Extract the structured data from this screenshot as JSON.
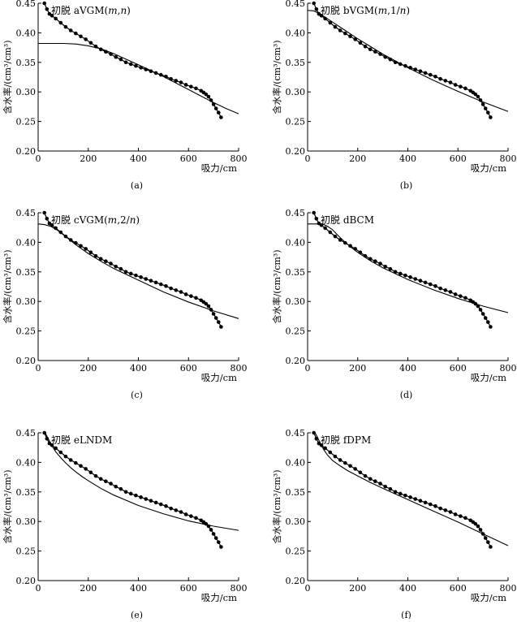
{
  "figure": {
    "panels": [
      {
        "caption": "(a)",
        "title_prefix": "初脱 ",
        "title_letter": "a",
        "title_model": "VGM(",
        "title_params": [
          {
            "t": "m",
            "i": true
          },
          {
            "t": ",",
            "i": false
          },
          {
            "t": "n",
            "i": true
          }
        ],
        "title_close": ")"
      },
      {
        "caption": "(b)",
        "title_prefix": "初脱 ",
        "title_letter": "b",
        "title_model": "VGM(",
        "title_params": [
          {
            "t": "m",
            "i": true
          },
          {
            "t": ",1/",
            "i": false
          },
          {
            "t": "n",
            "i": true
          }
        ],
        "title_close": ")"
      },
      {
        "caption": "(c)",
        "title_prefix": "初脱 ",
        "title_letter": "c",
        "title_model": "VGM(",
        "title_params": [
          {
            "t": "m",
            "i": true
          },
          {
            "t": ",2/",
            "i": false
          },
          {
            "t": "n",
            "i": true
          }
        ],
        "title_close": ")"
      },
      {
        "caption": "(d)",
        "title_prefix": "初脱 ",
        "title_letter": "d",
        "title_model": "BCM",
        "title_params": [],
        "title_close": ""
      },
      {
        "caption": "(e)",
        "title_prefix": "初脱 ",
        "title_letter": "e",
        "title_model": "LNDM",
        "title_params": [],
        "title_close": ""
      },
      {
        "caption": "(f)",
        "title_prefix": "初脱 ",
        "title_letter": "f",
        "title_model": "DPM",
        "title_params": [],
        "title_close": ""
      }
    ],
    "colors": {
      "ink": "#000000",
      "background": "#ffffff"
    }
  },
  "chart_data": [
    {
      "type": "line",
      "title": "初脱 aVGM(m,n)",
      "xlabel": "吸力/cm",
      "ylabel": "含水率/(cm³/cm³)",
      "xlim": [
        0,
        800
      ],
      "ylim": [
        0.2,
        0.45
      ],
      "xticks": [
        "0",
        "200",
        "400",
        "600",
        "800"
      ],
      "yticks": [
        "0.20",
        "0.25",
        "0.30",
        "0.35",
        "0.40",
        "0.45"
      ],
      "series": [
        {
          "kind": "measured",
          "x": [
            25,
            35,
            45,
            55,
            70,
            90,
            110,
            130,
            150,
            170,
            190,
            210,
            230,
            250,
            270,
            290,
            310,
            330,
            350,
            370,
            390,
            410,
            430,
            450,
            470,
            490,
            510,
            530,
            550,
            570,
            590,
            610,
            630,
            650,
            660,
            670,
            680,
            690,
            700,
            710,
            720,
            730
          ],
          "y": [
            0.45,
            0.44,
            0.432,
            0.429,
            0.424,
            0.417,
            0.41,
            0.404,
            0.399,
            0.394,
            0.389,
            0.383,
            0.377,
            0.372,
            0.368,
            0.364,
            0.359,
            0.355,
            0.35,
            0.347,
            0.344,
            0.341,
            0.338,
            0.335,
            0.332,
            0.329,
            0.326,
            0.322,
            0.319,
            0.316,
            0.312,
            0.309,
            0.306,
            0.302,
            0.299,
            0.296,
            0.292,
            0.286,
            0.279,
            0.272,
            0.265,
            0.257
          ]
        },
        {
          "kind": "fitted",
          "x": [
            0,
            100,
            150,
            200,
            250,
            300,
            400,
            500,
            600,
            700,
            750,
            800
          ],
          "y": [
            0.382,
            0.382,
            0.381,
            0.378,
            0.373,
            0.365,
            0.346,
            0.326,
            0.304,
            0.282,
            0.272,
            0.263
          ]
        }
      ]
    },
    {
      "type": "line",
      "title": "初脱 bVGM(m,1/n)",
      "xlabel": "吸力/cm",
      "ylabel": "含水率/(cm³/cm³)",
      "xlim": [
        0,
        800
      ],
      "ylim": [
        0.2,
        0.45
      ],
      "xticks": [
        "0",
        "200",
        "400",
        "600",
        "800"
      ],
      "yticks": [
        "0.20",
        "0.25",
        "0.30",
        "0.35",
        "0.40",
        "0.45"
      ],
      "series": [
        {
          "kind": "measured",
          "x": [
            25,
            35,
            45,
            55,
            70,
            90,
            110,
            130,
            150,
            170,
            190,
            210,
            230,
            250,
            270,
            290,
            310,
            330,
            350,
            370,
            390,
            410,
            430,
            450,
            470,
            490,
            510,
            530,
            550,
            570,
            590,
            610,
            630,
            650,
            660,
            670,
            680,
            690,
            700,
            710,
            720,
            730
          ],
          "y": [
            0.45,
            0.44,
            0.432,
            0.429,
            0.424,
            0.417,
            0.41,
            0.404,
            0.399,
            0.394,
            0.389,
            0.383,
            0.377,
            0.372,
            0.368,
            0.364,
            0.359,
            0.355,
            0.35,
            0.347,
            0.344,
            0.341,
            0.338,
            0.335,
            0.332,
            0.329,
            0.326,
            0.322,
            0.319,
            0.316,
            0.312,
            0.309,
            0.306,
            0.302,
            0.299,
            0.296,
            0.292,
            0.286,
            0.279,
            0.272,
            0.265,
            0.257
          ]
        },
        {
          "kind": "fitted",
          "x": [
            0,
            25,
            50,
            100,
            150,
            200,
            250,
            300,
            400,
            500,
            600,
            700,
            800
          ],
          "y": [
            0.438,
            0.437,
            0.432,
            0.418,
            0.404,
            0.39,
            0.377,
            0.364,
            0.341,
            0.32,
            0.301,
            0.283,
            0.267
          ]
        }
      ]
    },
    {
      "type": "line",
      "title": "初脱 cVGM(m,2/n)",
      "xlabel": "吸力/cm",
      "ylabel": "含水率/(cm³/cm³)",
      "xlim": [
        0,
        800
      ],
      "ylim": [
        0.2,
        0.45
      ],
      "xticks": [
        "0",
        "200",
        "400",
        "600",
        "800"
      ],
      "yticks": [
        "0.20",
        "0.25",
        "0.30",
        "0.35",
        "0.40",
        "0.45"
      ],
      "series": [
        {
          "kind": "measured",
          "x": [
            25,
            35,
            45,
            55,
            70,
            90,
            110,
            130,
            150,
            170,
            190,
            210,
            230,
            250,
            270,
            290,
            310,
            330,
            350,
            370,
            390,
            410,
            430,
            450,
            470,
            490,
            510,
            530,
            550,
            570,
            590,
            610,
            630,
            650,
            660,
            670,
            680,
            690,
            700,
            710,
            720,
            730
          ],
          "y": [
            0.45,
            0.44,
            0.432,
            0.429,
            0.424,
            0.417,
            0.41,
            0.404,
            0.399,
            0.394,
            0.389,
            0.383,
            0.377,
            0.372,
            0.368,
            0.364,
            0.359,
            0.355,
            0.35,
            0.347,
            0.344,
            0.341,
            0.338,
            0.335,
            0.332,
            0.329,
            0.326,
            0.322,
            0.319,
            0.316,
            0.312,
            0.309,
            0.306,
            0.302,
            0.299,
            0.296,
            0.292,
            0.286,
            0.279,
            0.272,
            0.265,
            0.257
          ]
        },
        {
          "kind": "fitted",
          "x": [
            0,
            25,
            50,
            75,
            100,
            150,
            200,
            250,
            300,
            400,
            500,
            600,
            700,
            800
          ],
          "y": [
            0.431,
            0.43,
            0.427,
            0.421,
            0.413,
            0.396,
            0.381,
            0.368,
            0.356,
            0.336,
            0.316,
            0.299,
            0.284,
            0.271
          ]
        }
      ]
    },
    {
      "type": "line",
      "title": "初脱 dBCM",
      "xlabel": "吸力/cm",
      "ylabel": "含水率/(cm³/cm³)",
      "xlim": [
        0,
        800
      ],
      "ylim": [
        0.2,
        0.45
      ],
      "xticks": [
        "0",
        "200",
        "400",
        "600",
        "800"
      ],
      "yticks": [
        "0.20",
        "0.25",
        "0.30",
        "0.35",
        "0.40",
        "0.45"
      ],
      "series": [
        {
          "kind": "measured",
          "x": [
            25,
            35,
            45,
            55,
            70,
            90,
            110,
            130,
            150,
            170,
            190,
            210,
            230,
            250,
            270,
            290,
            310,
            330,
            350,
            370,
            390,
            410,
            430,
            450,
            470,
            490,
            510,
            530,
            550,
            570,
            590,
            610,
            630,
            650,
            660,
            670,
            680,
            690,
            700,
            710,
            720,
            730
          ],
          "y": [
            0.45,
            0.44,
            0.432,
            0.429,
            0.424,
            0.417,
            0.41,
            0.404,
            0.399,
            0.394,
            0.389,
            0.383,
            0.377,
            0.372,
            0.368,
            0.364,
            0.359,
            0.355,
            0.35,
            0.347,
            0.344,
            0.341,
            0.338,
            0.335,
            0.332,
            0.329,
            0.326,
            0.322,
            0.319,
            0.316,
            0.312,
            0.309,
            0.306,
            0.302,
            0.299,
            0.296,
            0.292,
            0.286,
            0.279,
            0.272,
            0.265,
            0.257
          ]
        },
        {
          "kind": "fitted",
          "x": [
            0,
            60,
            80,
            100,
            125,
            150,
            175,
            200,
            250,
            300,
            400,
            500,
            600,
            700,
            800
          ],
          "y": [
            0.431,
            0.431,
            0.427,
            0.421,
            0.41,
            0.4,
            0.391,
            0.383,
            0.369,
            0.357,
            0.337,
            0.32,
            0.305,
            0.292,
            0.281
          ]
        }
      ]
    },
    {
      "type": "line",
      "title": "初脱 eLNDM",
      "xlabel": "吸力/cm",
      "ylabel": "含水率/(cm³/cm³)",
      "xlim": [
        0,
        800
      ],
      "ylim": [
        0.2,
        0.45
      ],
      "xticks": [
        "0",
        "200",
        "400",
        "600",
        "800"
      ],
      "yticks": [
        "0.20",
        "0.25",
        "0.30",
        "0.35",
        "0.40",
        "0.45"
      ],
      "series": [
        {
          "kind": "measured",
          "x": [
            25,
            35,
            45,
            55,
            70,
            90,
            110,
            130,
            150,
            170,
            190,
            210,
            230,
            250,
            270,
            290,
            310,
            330,
            350,
            370,
            390,
            410,
            430,
            450,
            470,
            490,
            510,
            530,
            550,
            570,
            590,
            610,
            630,
            650,
            660,
            670,
            680,
            690,
            700,
            710,
            720,
            730
          ],
          "y": [
            0.45,
            0.44,
            0.432,
            0.429,
            0.424,
            0.417,
            0.41,
            0.404,
            0.399,
            0.394,
            0.389,
            0.383,
            0.377,
            0.372,
            0.368,
            0.364,
            0.359,
            0.355,
            0.35,
            0.347,
            0.344,
            0.341,
            0.338,
            0.335,
            0.332,
            0.329,
            0.326,
            0.322,
            0.319,
            0.316,
            0.312,
            0.309,
            0.306,
            0.302,
            0.299,
            0.296,
            0.292,
            0.286,
            0.279,
            0.272,
            0.265,
            0.257
          ]
        },
        {
          "kind": "fitted",
          "x": [
            28,
            40,
            55,
            70,
            90,
            110,
            130,
            150,
            175,
            200,
            250,
            300,
            400,
            500,
            600,
            700,
            800
          ],
          "y": [
            0.45,
            0.44,
            0.428,
            0.418,
            0.408,
            0.399,
            0.391,
            0.384,
            0.376,
            0.369,
            0.356,
            0.345,
            0.327,
            0.313,
            0.301,
            0.292,
            0.285
          ]
        }
      ]
    },
    {
      "type": "line",
      "title": "初脱 fDPM",
      "xlabel": "吸力/cm",
      "ylabel": "含水率/(cm³/cm³)",
      "xlim": [
        0,
        800
      ],
      "ylim": [
        0.2,
        0.45
      ],
      "xticks": [
        "0",
        "200",
        "400",
        "600",
        "800"
      ],
      "yticks": [
        "0.20",
        "0.25",
        "0.30",
        "0.35",
        "0.40",
        "0.45"
      ],
      "series": [
        {
          "kind": "measured",
          "x": [
            25,
            35,
            45,
            55,
            70,
            90,
            110,
            130,
            150,
            170,
            190,
            210,
            230,
            250,
            270,
            290,
            310,
            330,
            350,
            370,
            390,
            410,
            430,
            450,
            470,
            490,
            510,
            530,
            550,
            570,
            590,
            610,
            630,
            650,
            660,
            670,
            680,
            690,
            700,
            710,
            720,
            730
          ],
          "y": [
            0.45,
            0.44,
            0.432,
            0.429,
            0.424,
            0.417,
            0.41,
            0.404,
            0.399,
            0.394,
            0.389,
            0.383,
            0.377,
            0.372,
            0.368,
            0.364,
            0.359,
            0.355,
            0.35,
            0.347,
            0.344,
            0.341,
            0.338,
            0.335,
            0.332,
            0.329,
            0.326,
            0.322,
            0.319,
            0.316,
            0.312,
            0.309,
            0.306,
            0.302,
            0.299,
            0.296,
            0.292,
            0.286,
            0.279,
            0.272,
            0.265,
            0.257
          ]
        },
        {
          "kind": "fitted",
          "x": [
            30,
            40,
            50,
            65,
            80,
            100,
            130,
            160,
            200,
            250,
            300,
            400,
            500,
            600,
            700,
            800
          ],
          "y": [
            0.45,
            0.442,
            0.433,
            0.421,
            0.412,
            0.403,
            0.394,
            0.386,
            0.377,
            0.366,
            0.356,
            0.337,
            0.318,
            0.299,
            0.279,
            0.259
          ]
        }
      ]
    }
  ]
}
